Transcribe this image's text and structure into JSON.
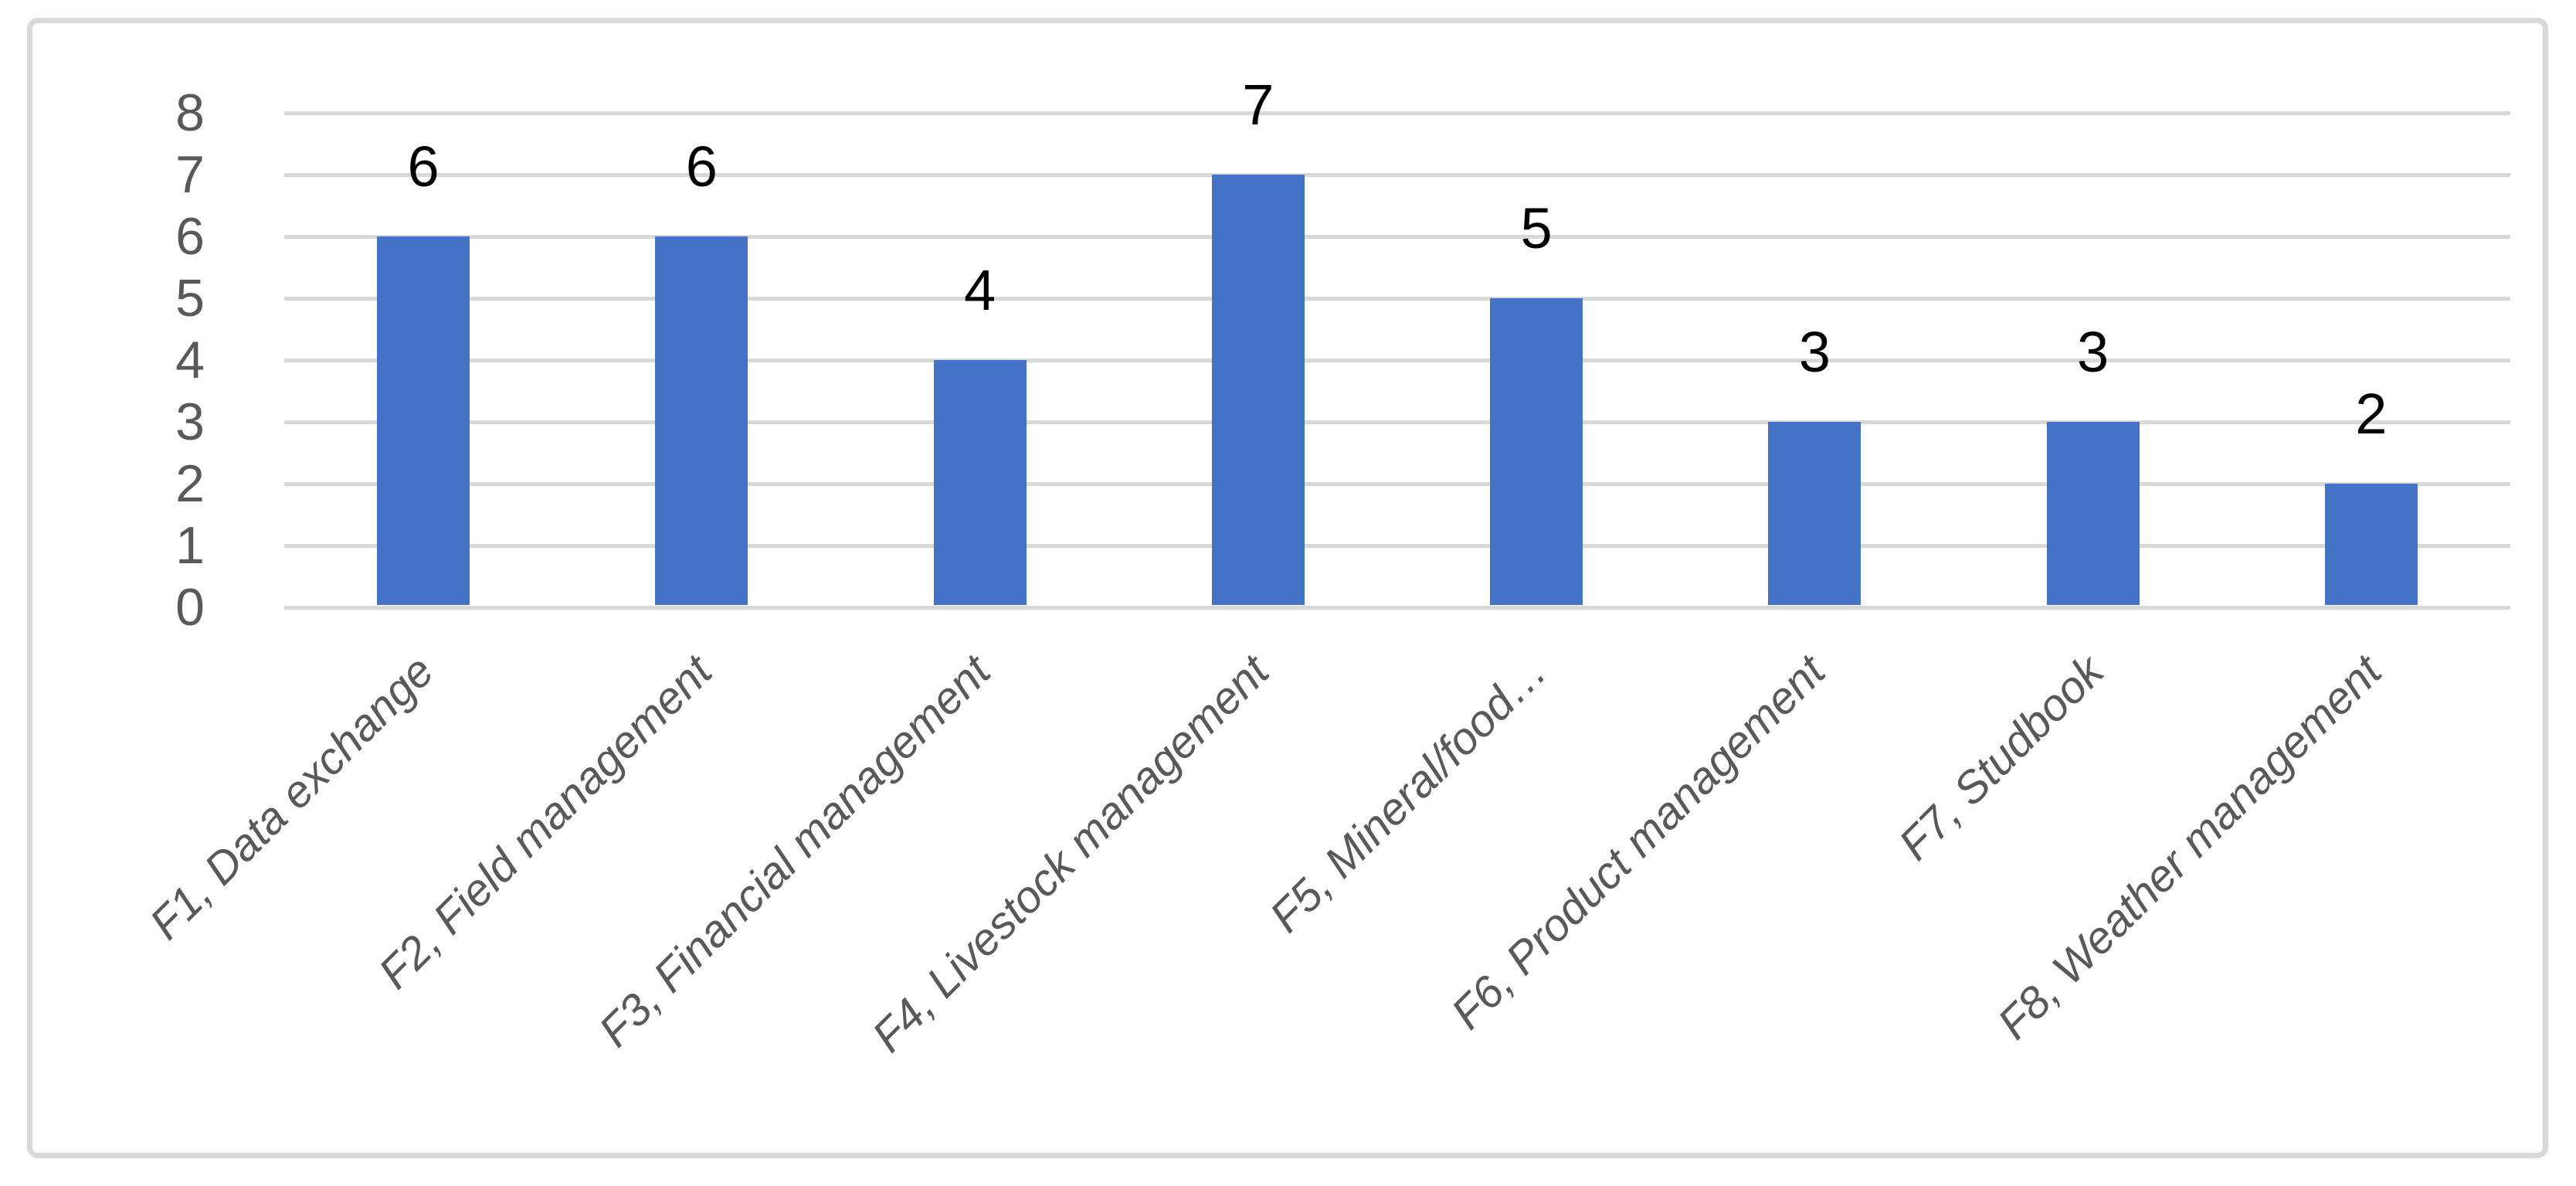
{
  "chart_data": {
    "type": "bar",
    "title": "",
    "xlabel": "",
    "ylabel": "",
    "categories": [
      "F1, Data exchange",
      "F2, Field management",
      "F3, Financial management",
      "F4, Livestock management",
      "F5, Mineral/food…",
      "F6, Product management",
      "F7, Studbook",
      "F8, Weather management"
    ],
    "values": [
      6,
      6,
      4,
      7,
      5,
      3,
      3,
      2
    ],
    "yticks": [
      0,
      1,
      2,
      3,
      4,
      5,
      6,
      7,
      8
    ],
    "ylim": [
      0,
      8
    ],
    "grid": "horizontal",
    "legend_position": "none",
    "colors": {
      "bar": "#4472C4",
      "gridline": "#D9D9D9",
      "axis_text": "#595959",
      "data_label": "#000000",
      "frame_border": "#D9D9D9",
      "background": "#FFFFFF"
    }
  }
}
